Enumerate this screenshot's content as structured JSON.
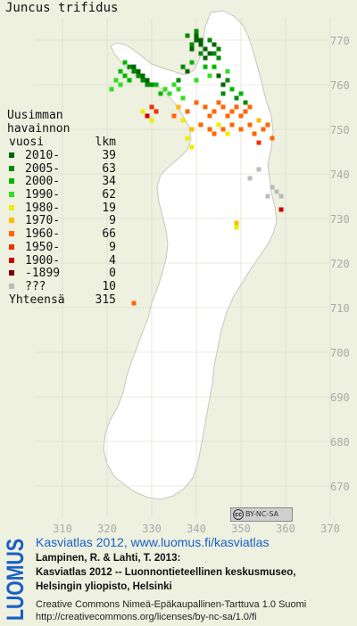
{
  "species": "Juncus trifidus",
  "legend": {
    "header_line1": "Uusimman",
    "header_line2": "havainnon",
    "header_line3": "vuosi",
    "header_count": "lkm",
    "rows": [
      {
        "label": "2010-",
        "count": "39",
        "color": "#006400"
      },
      {
        "label": "2005-",
        "count": "63",
        "color": "#008a00"
      },
      {
        "label": "2000-",
        "count": "34",
        "color": "#00b800"
      },
      {
        "label": "1990-",
        "count": "62",
        "color": "#33dd22"
      },
      {
        "label": "1980-",
        "count": "19",
        "color": "#eeee00"
      },
      {
        "label": "1970-",
        "count": "9",
        "color": "#ffbb00"
      },
      {
        "label": "1960-",
        "count": "66",
        "color": "#ff6600"
      },
      {
        "label": "1950-",
        "count": "9",
        "color": "#ee3300"
      },
      {
        "label": "1900-",
        "count": "4",
        "color": "#cc0000"
      },
      {
        "label": "-1899",
        "count": "0",
        "color": "#770000"
      },
      {
        "label": "???",
        "count": "10",
        "color": "#bbbbbb"
      }
    ],
    "total_label": "Yhteensä",
    "total_count": "315"
  },
  "axes": {
    "northing_labels": [
      "770",
      "760",
      "750",
      "740",
      "730",
      "720",
      "710",
      "700",
      "690",
      "680",
      "670"
    ],
    "easting_labels": [
      "310",
      "320",
      "330",
      "340",
      "350",
      "360",
      "370"
    ]
  },
  "cc_badge": {
    "text": "BY-NC-SA",
    "symbol": "cc"
  },
  "footer": {
    "title": "Kasviatlas 2012, www.luomus.fi/kasviatlas",
    "line1": "Lampinen, R. & Lahti, T. 2013:",
    "line2": "Kasviatlas 2012 -- Luonnontieteellinen keskusmuseo,",
    "line3": "Helsingin yliopisto, Helsinki",
    "license": "Creative Commons Nimeä-Epäkaupallinen-Tarttuva 1.0 Suomi",
    "license_url": "http://creativecommons.org/licenses/by-nc-sa/1.0/fi"
  },
  "logo_text": "LUOMUS",
  "colors": {
    "land": "#ffffff",
    "background": "#eef0e0",
    "grid": "#d8d8c8",
    "title_blue": "#1a5fc4"
  },
  "observations": [
    {
      "cat": 0,
      "e": 340,
      "n": 771
    },
    {
      "cat": 0,
      "e": 340,
      "n": 770
    },
    {
      "cat": 0,
      "e": 341,
      "n": 770
    },
    {
      "cat": 0,
      "e": 341,
      "n": 769
    },
    {
      "cat": 0,
      "e": 342,
      "n": 768
    },
    {
      "cat": 0,
      "e": 339,
      "n": 768
    },
    {
      "cat": 0,
      "e": 343,
      "n": 767
    },
    {
      "cat": 0,
      "e": 344,
      "n": 769
    },
    {
      "cat": 0,
      "e": 342,
      "n": 766
    },
    {
      "cat": 0,
      "e": 327,
      "n": 763
    },
    {
      "cat": 0,
      "e": 328,
      "n": 762
    },
    {
      "cat": 0,
      "e": 326,
      "n": 764
    },
    {
      "cat": 0,
      "e": 329,
      "n": 761
    },
    {
      "cat": 0,
      "e": 345,
      "n": 762
    },
    {
      "cat": 0,
      "e": 346,
      "n": 760
    },
    {
      "cat": 0,
      "e": 338,
      "n": 763
    },
    {
      "cat": 1,
      "e": 338,
      "n": 771
    },
    {
      "cat": 1,
      "e": 339,
      "n": 769
    },
    {
      "cat": 1,
      "e": 340,
      "n": 772
    },
    {
      "cat": 1,
      "e": 341,
      "n": 767
    },
    {
      "cat": 1,
      "e": 343,
      "n": 770
    },
    {
      "cat": 1,
      "e": 344,
      "n": 767
    },
    {
      "cat": 1,
      "e": 345,
      "n": 768
    },
    {
      "cat": 1,
      "e": 345,
      "n": 766
    },
    {
      "cat": 1,
      "e": 325,
      "n": 764
    },
    {
      "cat": 1,
      "e": 326,
      "n": 763
    },
    {
      "cat": 1,
      "e": 327,
      "n": 762
    },
    {
      "cat": 1,
      "e": 328,
      "n": 761
    },
    {
      "cat": 1,
      "e": 329,
      "n": 760
    },
    {
      "cat": 1,
      "e": 330,
      "n": 760
    },
    {
      "cat": 1,
      "e": 337,
      "n": 764
    },
    {
      "cat": 1,
      "e": 336,
      "n": 761
    },
    {
      "cat": 1,
      "e": 347,
      "n": 761
    },
    {
      "cat": 1,
      "e": 346,
      "n": 758
    },
    {
      "cat": 1,
      "e": 349,
      "n": 757
    },
    {
      "cat": 1,
      "e": 351,
      "n": 756
    },
    {
      "cat": 2,
      "e": 324,
      "n": 765
    },
    {
      "cat": 2,
      "e": 323,
      "n": 763
    },
    {
      "cat": 2,
      "e": 324,
      "n": 762
    },
    {
      "cat": 2,
      "e": 325,
      "n": 761
    },
    {
      "cat": 2,
      "e": 331,
      "n": 760
    },
    {
      "cat": 2,
      "e": 332,
      "n": 758
    },
    {
      "cat": 2,
      "e": 339,
      "n": 765
    },
    {
      "cat": 2,
      "e": 342,
      "n": 764
    },
    {
      "cat": 2,
      "e": 344,
      "n": 764
    },
    {
      "cat": 2,
      "e": 348,
      "n": 759
    },
    {
      "cat": 2,
      "e": 350,
      "n": 758
    },
    {
      "cat": 3,
      "e": 322,
      "n": 761
    },
    {
      "cat": 3,
      "e": 323,
      "n": 760
    },
    {
      "cat": 3,
      "e": 321,
      "n": 759
    },
    {
      "cat": 3,
      "e": 333,
      "n": 759
    },
    {
      "cat": 3,
      "e": 334,
      "n": 758
    },
    {
      "cat": 3,
      "e": 336,
      "n": 759
    },
    {
      "cat": 3,
      "e": 337,
      "n": 757
    },
    {
      "cat": 3,
      "e": 335,
      "n": 760
    },
    {
      "cat": 3,
      "e": 340,
      "n": 761
    },
    {
      "cat": 3,
      "e": 343,
      "n": 762
    },
    {
      "cat": 3,
      "e": 347,
      "n": 763
    },
    {
      "cat": 4,
      "e": 328,
      "n": 754
    },
    {
      "cat": 4,
      "e": 330,
      "n": 752
    },
    {
      "cat": 4,
      "e": 337,
      "n": 752
    },
    {
      "cat": 4,
      "e": 338,
      "n": 748
    },
    {
      "cat": 4,
      "e": 339,
      "n": 746
    },
    {
      "cat": 4,
      "e": 345,
      "n": 751
    },
    {
      "cat": 4,
      "e": 347,
      "n": 749
    },
    {
      "cat": 4,
      "e": 349,
      "n": 728
    },
    {
      "cat": 5,
      "e": 336,
      "n": 755
    },
    {
      "cat": 5,
      "e": 339,
      "n": 750
    },
    {
      "cat": 5,
      "e": 354,
      "n": 752
    },
    {
      "cat": 5,
      "e": 349,
      "n": 729
    },
    {
      "cat": 6,
      "e": 340,
      "n": 756
    },
    {
      "cat": 6,
      "e": 342,
      "n": 755
    },
    {
      "cat": 6,
      "e": 343,
      "n": 753
    },
    {
      "cat": 6,
      "e": 344,
      "n": 754
    },
    {
      "cat": 6,
      "e": 345,
      "n": 756
    },
    {
      "cat": 6,
      "e": 346,
      "n": 755
    },
    {
      "cat": 6,
      "e": 347,
      "n": 753
    },
    {
      "cat": 6,
      "e": 348,
      "n": 754
    },
    {
      "cat": 6,
      "e": 349,
      "n": 755
    },
    {
      "cat": 6,
      "e": 350,
      "n": 753
    },
    {
      "cat": 6,
      "e": 351,
      "n": 754
    },
    {
      "cat": 6,
      "e": 352,
      "n": 755
    },
    {
      "cat": 6,
      "e": 341,
      "n": 751
    },
    {
      "cat": 6,
      "e": 343,
      "n": 750
    },
    {
      "cat": 6,
      "e": 344,
      "n": 749
    },
    {
      "cat": 6,
      "e": 346,
      "n": 750
    },
    {
      "cat": 6,
      "e": 348,
      "n": 751
    },
    {
      "cat": 6,
      "e": 350,
      "n": 750
    },
    {
      "cat": 6,
      "e": 352,
      "n": 751
    },
    {
      "cat": 6,
      "e": 353,
      "n": 749
    },
    {
      "cat": 6,
      "e": 355,
      "n": 750
    },
    {
      "cat": 6,
      "e": 356,
      "n": 751
    },
    {
      "cat": 6,
      "e": 357,
      "n": 748
    },
    {
      "cat": 6,
      "e": 338,
      "n": 754
    },
    {
      "cat": 6,
      "e": 335,
      "n": 753
    },
    {
      "cat": 6,
      "e": 326,
      "n": 711
    },
    {
      "cat": 7,
      "e": 330,
      "n": 755
    },
    {
      "cat": 7,
      "e": 331,
      "n": 754
    },
    {
      "cat": 7,
      "e": 354,
      "n": 747
    },
    {
      "cat": 8,
      "e": 329,
      "n": 753
    },
    {
      "cat": 8,
      "e": 359,
      "n": 732
    },
    {
      "cat": 10,
      "e": 352,
      "n": 739
    },
    {
      "cat": 10,
      "e": 357,
      "n": 737
    },
    {
      "cat": 10,
      "e": 358,
      "n": 736
    },
    {
      "cat": 10,
      "e": 356,
      "n": 735
    },
    {
      "cat": 10,
      "e": 359,
      "n": 735
    },
    {
      "cat": 10,
      "e": 354,
      "n": 741
    }
  ]
}
